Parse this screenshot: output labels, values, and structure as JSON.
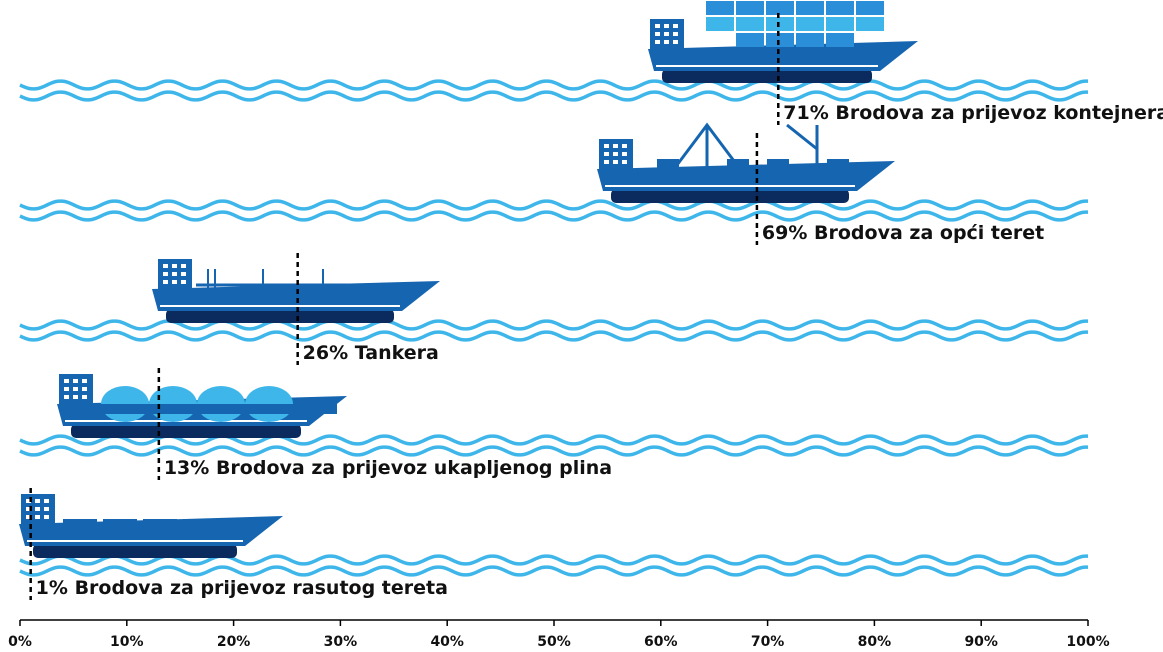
{
  "chart_data": {
    "type": "marker",
    "categories": [
      "Brodova za prijevoz kontejnera",
      "Brodova za opći teret",
      "Tankera",
      "Brodova za prijevoz ukapljenog plina",
      "Brodova za prijevoz rasutog tereta"
    ],
    "values": [
      71,
      69,
      26,
      13,
      1
    ],
    "value_labels": [
      "71%",
      "69%",
      "26%",
      "13%",
      "1%"
    ],
    "xlim": [
      0,
      100
    ],
    "xticks": [
      {
        "value": 0,
        "label": "0%"
      },
      {
        "value": 10,
        "label": "10%"
      },
      {
        "value": 20,
        "label": "20%"
      },
      {
        "value": 30,
        "label": "30%"
      },
      {
        "value": 40,
        "label": "40%"
      },
      {
        "value": 50,
        "label": "50%"
      },
      {
        "value": 60,
        "label": "60%"
      },
      {
        "value": 70,
        "label": "70%"
      },
      {
        "value": 80,
        "label": "80%"
      },
      {
        "value": 90,
        "label": "90%"
      },
      {
        "value": 100,
        "label": "100%"
      }
    ]
  }
}
